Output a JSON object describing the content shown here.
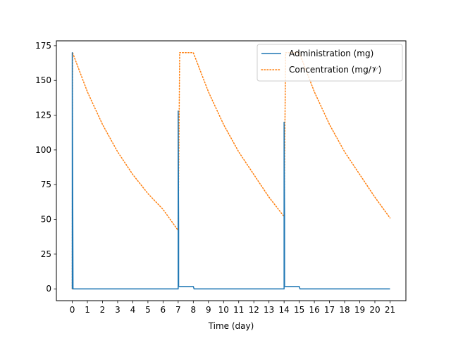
{
  "chart_data": {
    "type": "line",
    "title": "",
    "xlabel": "Time (day)",
    "ylabel": "",
    "xlim": [
      -1.05,
      22.05
    ],
    "ylim": [
      -8.5,
      178.5
    ],
    "xticks": [
      0,
      1,
      2,
      3,
      4,
      5,
      6,
      7,
      8,
      9,
      10,
      11,
      12,
      13,
      14,
      15,
      16,
      17,
      18,
      19,
      20,
      21
    ],
    "xtick_labels": [
      "0",
      "1",
      "2",
      "3",
      "4",
      "5",
      "6",
      "7",
      "8",
      "9",
      "10",
      "11",
      "12",
      "13",
      "14",
      "15",
      "16",
      "17",
      "18",
      "19",
      "20",
      "21"
    ],
    "yticks": [
      0,
      25,
      50,
      75,
      100,
      125,
      150,
      175
    ],
    "ytick_labels": [
      "0",
      "25",
      "50",
      "75",
      "100",
      "125",
      "150",
      "175"
    ],
    "grid": false,
    "legend_position": "top-right",
    "series": [
      {
        "name": "Administration (mg)",
        "color": "#1f77b4",
        "style": "solid",
        "points": [
          [
            0,
            0
          ],
          [
            0,
            170
          ],
          [
            0.05,
            0
          ],
          [
            7,
            0
          ],
          [
            7,
            128
          ],
          [
            7.03,
            42
          ],
          [
            7.03,
            1.7
          ],
          [
            8,
            1.7
          ],
          [
            8.05,
            0
          ],
          [
            14,
            0
          ],
          [
            14,
            120
          ],
          [
            14.03,
            52
          ],
          [
            14.03,
            1.7
          ],
          [
            15,
            1.7
          ],
          [
            15.05,
            0
          ],
          [
            21,
            0
          ]
        ]
      },
      {
        "name": "Concentration (mg/𝒱)",
        "color": "#ff7f0e",
        "style": "dotted",
        "points": [
          [
            0,
            0
          ],
          [
            0.02,
            170
          ],
          [
            1,
            141.8
          ],
          [
            2,
            118.3
          ],
          [
            3,
            98.6
          ],
          [
            4,
            82.3
          ],
          [
            5,
            68.6
          ],
          [
            6,
            57.2
          ],
          [
            7,
            42
          ],
          [
            7.1,
            170
          ],
          [
            8,
            170
          ],
          [
            9,
            141.8
          ],
          [
            10,
            118.3
          ],
          [
            11,
            98.6
          ],
          [
            12,
            82.3
          ],
          [
            13,
            66
          ],
          [
            14,
            52
          ],
          [
            14.1,
            170
          ],
          [
            15,
            170
          ],
          [
            16,
            141.8
          ],
          [
            17,
            118.3
          ],
          [
            18,
            98.6
          ],
          [
            19,
            82.3
          ],
          [
            20,
            66
          ],
          [
            21,
            51
          ]
        ]
      }
    ]
  }
}
